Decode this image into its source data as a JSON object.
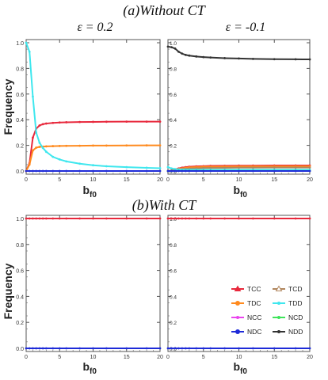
{
  "figure": {
    "title_a": "(a)Without CT",
    "title_b": "(b)With CT",
    "col_title_1": "ε = 0.2",
    "col_title_2": "ε = -0.1",
    "ylabel": "Frequency",
    "xlabel_main": "b",
    "xlabel_sub": "f0"
  },
  "legend": [
    {
      "name": "TCC",
      "color": "#e8283c",
      "marker": "triangle"
    },
    {
      "name": "TCD",
      "color": "#b0855c",
      "marker": "triangle-open"
    },
    {
      "name": "TDC",
      "color": "#ff8a1e",
      "marker": "circle"
    },
    {
      "name": "TDD",
      "color": "#3fe7ee",
      "marker": "dot"
    },
    {
      "name": "NCC",
      "color": "#ea43ee",
      "marker": "dot"
    },
    {
      "name": "NCD",
      "color": "#3ee45a",
      "marker": "dot"
    },
    {
      "name": "NDC",
      "color": "#1e2bd8",
      "marker": "circle"
    },
    {
      "name": "NDD",
      "color": "#333333",
      "marker": "dot"
    }
  ],
  "chart_data": [
    {
      "id": "a1",
      "type": "line",
      "xlim": [
        0,
        20
      ],
      "ylim": [
        0,
        1.0
      ],
      "x_ticks": [
        "0",
        "5",
        "10",
        "15",
        "20"
      ],
      "y_ticks": [
        "0.0",
        "0.2",
        "0.4",
        "0.6",
        "0.8",
        "1.0"
      ],
      "x": [
        0,
        0.5,
        1,
        1.5,
        2,
        2.5,
        3,
        4,
        5,
        6,
        8,
        10,
        12,
        15,
        18,
        20
      ],
      "series": [
        {
          "name": "TCC",
          "color": "#e8283c",
          "values": [
            0.0,
            0.06,
            0.26,
            0.33,
            0.355,
            0.365,
            0.37,
            0.375,
            0.378,
            0.38,
            0.382,
            0.383,
            0.384,
            0.385,
            0.385,
            0.385
          ]
        },
        {
          "name": "TDC",
          "color": "#ff8a1e",
          "values": [
            0.0,
            0.05,
            0.16,
            0.182,
            0.188,
            0.19,
            0.192,
            0.194,
            0.195,
            0.196,
            0.197,
            0.198,
            0.198,
            0.199,
            0.2,
            0.2
          ]
        },
        {
          "name": "TDD",
          "color": "#3fe7ee",
          "values": [
            1.0,
            0.93,
            0.58,
            0.3,
            0.22,
            0.18,
            0.15,
            0.11,
            0.09,
            0.075,
            0.057,
            0.045,
            0.037,
            0.03,
            0.025,
            0.022
          ]
        },
        {
          "name": "NDC",
          "color": "#1e2bd8",
          "values": [
            0.0,
            0.0,
            0.0,
            0.0,
            0.0,
            0.0,
            0.0,
            0.0,
            0.0,
            0.0,
            0.0,
            0.0,
            0.0,
            0.0,
            0.0,
            0.0
          ]
        }
      ]
    },
    {
      "id": "a2",
      "type": "line",
      "xlim": [
        0,
        20
      ],
      "ylim": [
        0,
        1.0
      ],
      "x_ticks": [
        "0",
        "5",
        "10",
        "15",
        "20"
      ],
      "y_ticks": [
        "0.0",
        "0.2",
        "0.4",
        "0.6",
        "0.8",
        "1.0"
      ],
      "x": [
        0,
        0.5,
        1,
        1.5,
        2,
        2.5,
        3,
        4,
        5,
        6,
        8,
        10,
        12,
        15,
        18,
        20
      ],
      "series": [
        {
          "name": "NDD",
          "color": "#333333",
          "values": [
            0.97,
            0.965,
            0.955,
            0.93,
            0.915,
            0.905,
            0.9,
            0.893,
            0.888,
            0.885,
            0.88,
            0.877,
            0.874,
            0.872,
            0.871,
            0.87
          ]
        },
        {
          "name": "TCC",
          "color": "#e8283c",
          "values": [
            0.0,
            0.004,
            0.012,
            0.02,
            0.026,
            0.03,
            0.033,
            0.036,
            0.038,
            0.04,
            0.041,
            0.042,
            0.042,
            0.043,
            0.043,
            0.043
          ]
        },
        {
          "name": "TDC",
          "color": "#ff8a1e",
          "values": [
            0.0,
            0.003,
            0.009,
            0.016,
            0.021,
            0.025,
            0.028,
            0.031,
            0.033,
            0.034,
            0.035,
            0.036,
            0.036,
            0.037,
            0.037,
            0.037
          ]
        },
        {
          "name": "TCD",
          "color": "#b0855c",
          "values": [
            0.0,
            0.002,
            0.005,
            0.01,
            0.014,
            0.017,
            0.019,
            0.021,
            0.023,
            0.024,
            0.025,
            0.026,
            0.026,
            0.027,
            0.027,
            0.027
          ]
        },
        {
          "name": "TDD",
          "color": "#3fe7ee",
          "values": [
            0.03,
            0.02,
            0.015,
            0.012,
            0.011,
            0.01,
            0.01,
            0.01,
            0.01,
            0.01,
            0.01,
            0.01,
            0.01,
            0.01,
            0.01,
            0.01
          ]
        },
        {
          "name": "NCD",
          "color": "#3ee45a",
          "values": [
            0.0,
            0.0,
            0.001,
            0.001,
            0.001,
            0.001,
            0.001,
            0.001,
            0.001,
            0.001,
            0.001,
            0.001,
            0.001,
            0.001,
            0.001,
            0.001
          ]
        },
        {
          "name": "NDC",
          "color": "#1e2bd8",
          "values": [
            0.0,
            0.0,
            0.0,
            0.0,
            0.0,
            0.0,
            0.0,
            0.0,
            0.0,
            0.0,
            0.0,
            0.0,
            0.0,
            0.0,
            0.0,
            0.0
          ]
        }
      ]
    },
    {
      "id": "b1",
      "type": "line",
      "xlim": [
        0,
        20
      ],
      "ylim": [
        0,
        1.0
      ],
      "x_ticks": [
        "0",
        "5",
        "10",
        "15",
        "20"
      ],
      "y_ticks": [
        "0.0",
        "0.2",
        "0.4",
        "0.6",
        "0.8",
        "1.0"
      ],
      "x": [
        0,
        0.5,
        1,
        1.5,
        2,
        2.5,
        3,
        4,
        5,
        6,
        8,
        10,
        12,
        15,
        18,
        20
      ],
      "series": [
        {
          "name": "TCC",
          "color": "#e8283c",
          "values": [
            1,
            1,
            1,
            1,
            1,
            1,
            1,
            1,
            1,
            1,
            1,
            1,
            1,
            1,
            1,
            1
          ]
        },
        {
          "name": "NDC",
          "color": "#1e2bd8",
          "values": [
            0,
            0,
            0,
            0,
            0,
            0,
            0,
            0,
            0,
            0,
            0,
            0,
            0,
            0,
            0,
            0
          ]
        }
      ]
    },
    {
      "id": "b2",
      "type": "line",
      "xlim": [
        0,
        20
      ],
      "ylim": [
        0,
        1.0
      ],
      "x_ticks": [
        "0",
        "5",
        "10",
        "15",
        "20"
      ],
      "y_ticks": [
        "0.0",
        "0.2",
        "0.4",
        "0.6",
        "0.8",
        "1.0"
      ],
      "x": [
        0,
        0.5,
        1,
        1.5,
        2,
        2.5,
        3,
        4,
        5,
        6,
        8,
        10,
        12,
        15,
        18,
        20
      ],
      "series": [
        {
          "name": "TCC",
          "color": "#e8283c",
          "values": [
            1,
            1,
            1,
            1,
            1,
            1,
            1,
            1,
            1,
            1,
            1,
            1,
            1,
            1,
            1,
            1
          ]
        },
        {
          "name": "NDC",
          "color": "#1e2bd8",
          "values": [
            0,
            0,
            0,
            0,
            0,
            0,
            0,
            0,
            0,
            0,
            0,
            0,
            0,
            0,
            0,
            0
          ]
        }
      ]
    }
  ]
}
